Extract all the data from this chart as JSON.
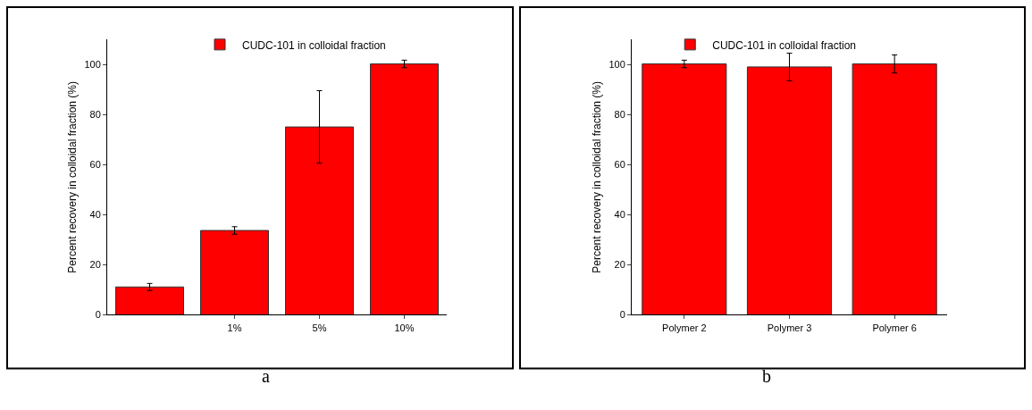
{
  "chart_data": [
    {
      "type": "bar",
      "ylabel": "Percent recovery in colloidal fraction (%)",
      "categories": [
        null,
        "1%",
        "5%",
        "10%"
      ],
      "annotations": [
        "a"
      ],
      "legend": "top",
      "series": [
        {
          "name": "CUDC-101 in colloidal fraction",
          "color": "#ff0000",
          "values": [
            11.1,
            33.7,
            75.1,
            100.3
          ],
          "errors": [
            1.4,
            1.5,
            14.5,
            1.5
          ]
        }
      ],
      "ylim": [
        0,
        110
      ],
      "yticks": [
        0,
        20,
        40,
        60,
        80,
        100
      ]
    },
    {
      "type": "bar",
      "ylabel": "Percent recovery in colloidal fraction (%)",
      "categories": [
        "Polymer 2",
        "Polymer 3",
        "Polymer 6"
      ],
      "annotations": [
        "b"
      ],
      "legend": "top",
      "series": [
        {
          "name": "CUDC-101 in colloidal fraction",
          "color": "#ff0000",
          "values": [
            100.3,
            99.1,
            100.3
          ],
          "errors": [
            1.5,
            5.5,
            3.6
          ]
        }
      ],
      "ylim": [
        0,
        110
      ],
      "yticks": [
        0,
        20,
        40,
        60,
        80,
        100
      ]
    }
  ]
}
